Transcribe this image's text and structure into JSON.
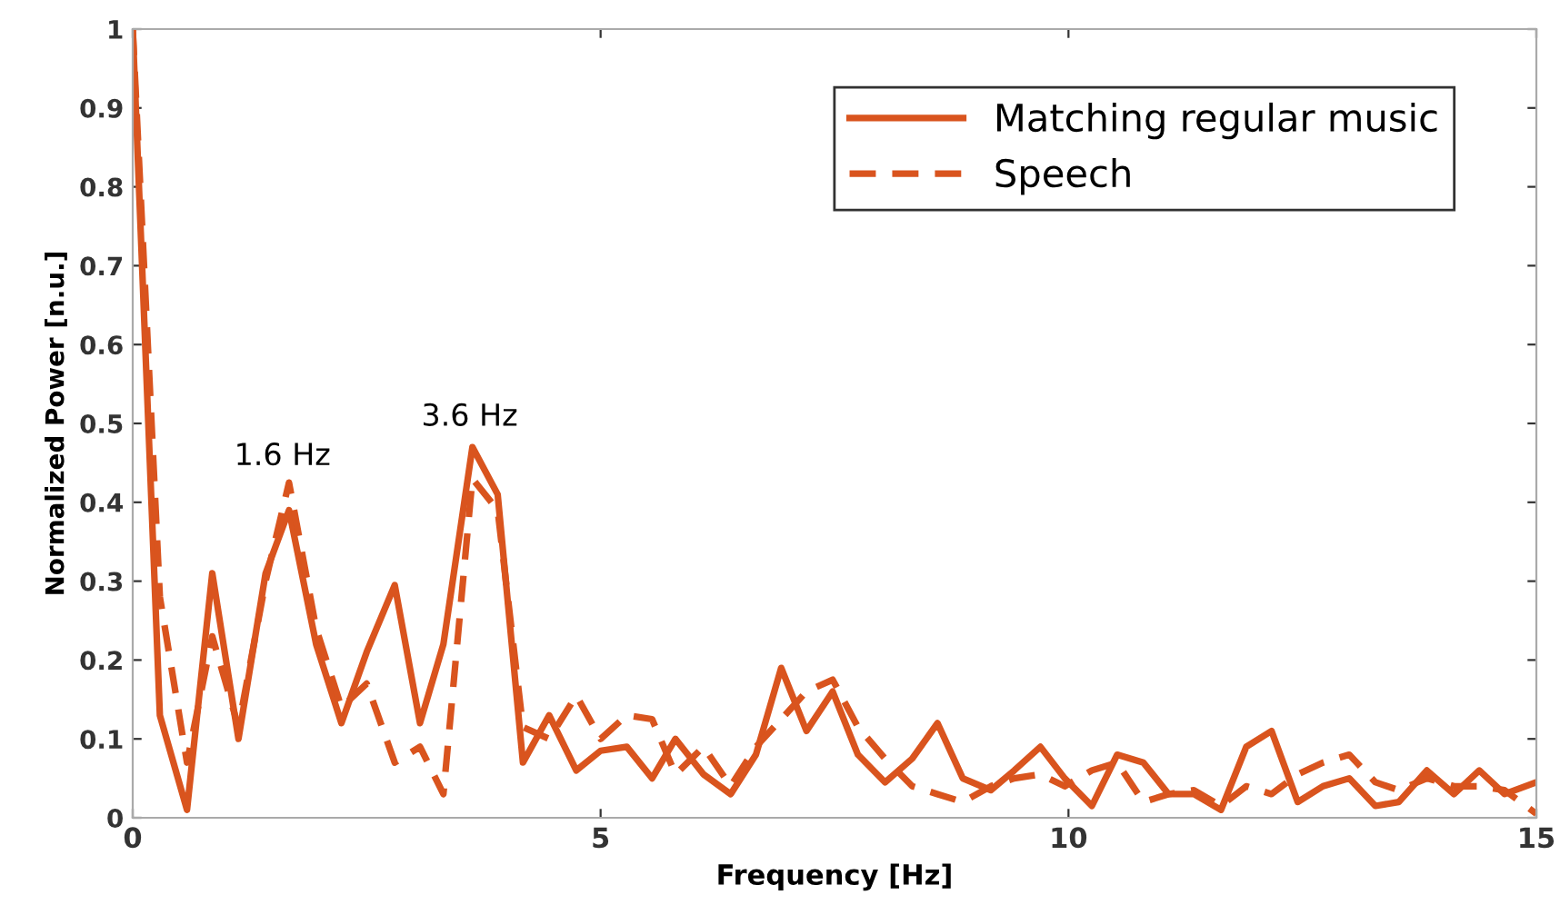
{
  "chart_data": {
    "type": "line",
    "xlabel": "Frequency [Hz]",
    "ylabel": "Normalized Power [n.u.]",
    "x": [
      0,
      0.29,
      0.58,
      0.85,
      1.13,
      1.42,
      1.67,
      1.96,
      2.23,
      2.5,
      2.8,
      3.07,
      3.32,
      3.63,
      3.9,
      4.17,
      4.45,
      4.74,
      5.0,
      5.28,
      5.55,
      5.8,
      6.1,
      6.39,
      6.66,
      6.93,
      7.2,
      7.48,
      7.75,
      8.04,
      8.33,
      8.6,
      8.87,
      9.17,
      9.42,
      9.7,
      9.96,
      10.25,
      10.52,
      10.8,
      11.07,
      11.34,
      11.63,
      11.9,
      12.17,
      12.45,
      12.72,
      13.0,
      13.28,
      13.53,
      13.83,
      14.12,
      14.39,
      14.66,
      15
    ],
    "series": [
      {
        "name": "Matching regular music",
        "color": "#d9541e",
        "line_style": "solid",
        "values": [
          1.0,
          0.13,
          0.01,
          0.31,
          0.1,
          0.31,
          0.39,
          0.22,
          0.12,
          0.21,
          0.295,
          0.12,
          0.22,
          0.47,
          0.41,
          0.07,
          0.13,
          0.06,
          0.085,
          0.09,
          0.05,
          0.1,
          0.055,
          0.03,
          0.08,
          0.19,
          0.11,
          0.16,
          0.08,
          0.045,
          0.075,
          0.12,
          0.05,
          0.035,
          0.06,
          0.09,
          0.05,
          0.015,
          0.08,
          0.07,
          0.03,
          0.03,
          0.01,
          0.09,
          0.11,
          0.02,
          0.04,
          0.05,
          0.015,
          0.02,
          0.06,
          0.03,
          0.06,
          0.03,
          0.045
        ]
      },
      {
        "name": "Speech",
        "color": "#d9541e",
        "line_style": "dashed",
        "values": [
          1.0,
          0.28,
          0.07,
          0.23,
          0.115,
          0.3,
          0.425,
          0.24,
          0.14,
          0.17,
          0.07,
          0.09,
          0.03,
          0.43,
          0.39,
          0.115,
          0.1,
          0.155,
          0.1,
          0.13,
          0.125,
          0.055,
          0.09,
          0.04,
          0.09,
          0.125,
          0.16,
          0.175,
          0.115,
          0.075,
          0.04,
          0.03,
          0.02,
          0.04,
          0.05,
          0.055,
          0.04,
          0.06,
          0.07,
          0.02,
          0.03,
          0.035,
          0.015,
          0.04,
          0.03,
          0.055,
          0.07,
          0.08,
          0.045,
          0.035,
          0.05,
          0.04,
          0.04,
          0.035,
          0.005
        ]
      }
    ],
    "annotations": [
      {
        "text": "1.6 Hz",
        "x": 1.6,
        "y": 0.42
      },
      {
        "text": "3.6 Hz",
        "x": 3.6,
        "y": 0.47
      }
    ],
    "xlim": [
      0,
      15
    ],
    "xticks": [
      0,
      5,
      10,
      15
    ],
    "ylim": [
      0,
      1
    ],
    "yticks": [
      0,
      0.1,
      0.2,
      0.3,
      0.4,
      0.5,
      0.6,
      0.7,
      0.8,
      0.9,
      1
    ],
    "grid": false,
    "legend": "top right",
    "marker": "none"
  }
}
